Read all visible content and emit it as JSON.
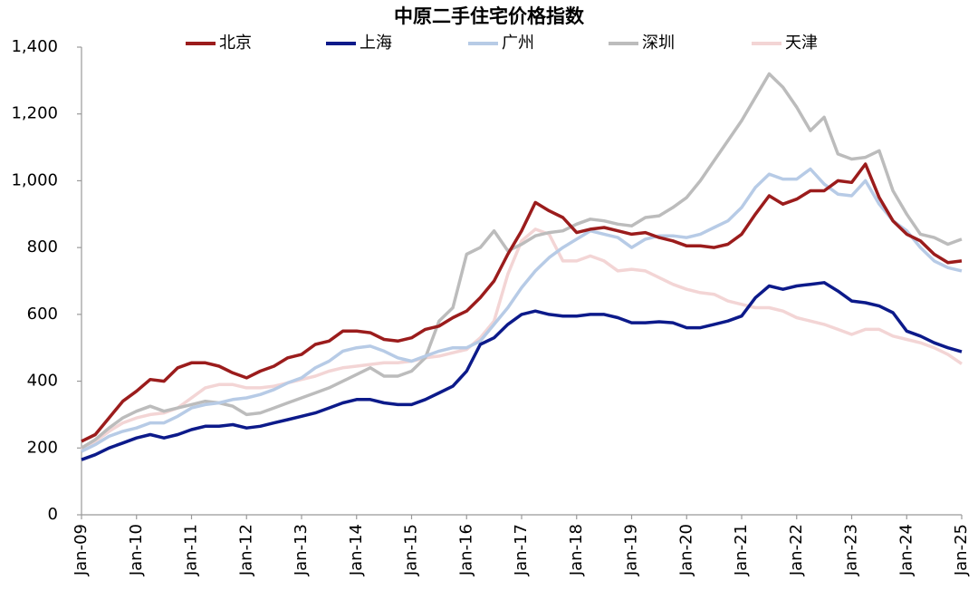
{
  "chart_data": {
    "type": "line",
    "title": "中原二手住宅价格指数",
    "categories": [
      "Jan-09",
      null,
      null,
      null,
      "Jan-10",
      null,
      null,
      null,
      "Jan-11",
      null,
      null,
      null,
      "Jan-12",
      null,
      null,
      null,
      "Jan-13",
      null,
      null,
      null,
      "Jan-14",
      null,
      null,
      null,
      "Jan-15",
      null,
      null,
      null,
      "Jan-16",
      null,
      null,
      null,
      "Jan-17",
      null,
      null,
      null,
      "Jan-18",
      null,
      null,
      null,
      "Jan-19",
      null,
      null,
      null,
      "Jan-20",
      null,
      null,
      null,
      "Jan-21",
      null,
      null,
      null,
      "Jan-22",
      null,
      null,
      null,
      "Jan-23",
      null,
      null,
      null,
      "Jan-24",
      null,
      null,
      null,
      "Jan-25"
    ],
    "ylim": [
      0,
      1400
    ],
    "yticks": [
      0,
      200,
      400,
      600,
      800,
      {
        "value": 1000,
        "label": "1,000"
      },
      {
        "value": 1200,
        "label": "1,200"
      },
      {
        "value": 1400,
        "label": "1,400"
      }
    ],
    "grid": false,
    "legend": "top",
    "series": [
      {
        "name": "北京",
        "color": "#9b1c1c",
        "values": [
          220,
          240,
          290,
          340,
          370,
          405,
          400,
          440,
          455,
          455,
          445,
          425,
          410,
          430,
          445,
          470,
          480,
          510,
          520,
          550,
          550,
          545,
          525,
          520,
          530,
          555,
          565,
          590,
          610,
          650,
          700,
          780,
          850,
          935,
          910,
          890,
          845,
          855,
          860,
          850,
          840,
          845,
          830,
          820,
          805,
          805,
          800,
          810,
          840,
          900,
          955,
          930,
          945,
          970,
          970,
          1000,
          995,
          1050,
          950,
          880,
          840,
          820,
          780,
          755,
          760
        ]
      },
      {
        "name": "上海",
        "color": "#0c1a8a",
        "values": [
          165,
          180,
          200,
          215,
          230,
          240,
          230,
          240,
          255,
          265,
          265,
          270,
          260,
          265,
          275,
          285,
          295,
          305,
          320,
          335,
          345,
          345,
          335,
          330,
          330,
          345,
          365,
          385,
          430,
          510,
          530,
          570,
          600,
          610,
          600,
          595,
          595,
          600,
          600,
          590,
          575,
          575,
          578,
          575,
          560,
          560,
          570,
          580,
          595,
          650,
          685,
          675,
          685,
          690,
          695,
          670,
          640,
          635,
          625,
          605,
          550,
          535,
          515,
          500,
          488
        ]
      },
      {
        "name": "广州",
        "color": "#b7cbe6",
        "values": [
          190,
          210,
          235,
          250,
          260,
          275,
          275,
          295,
          320,
          330,
          335,
          345,
          350,
          360,
          375,
          395,
          410,
          440,
          460,
          490,
          500,
          505,
          490,
          470,
          460,
          475,
          490,
          500,
          500,
          520,
          570,
          620,
          680,
          730,
          770,
          800,
          825,
          850,
          840,
          830,
          800,
          825,
          835,
          835,
          830,
          840,
          860,
          880,
          920,
          980,
          1020,
          1005,
          1005,
          1035,
          990,
          960,
          955,
          1000,
          930,
          880,
          850,
          800,
          760,
          740,
          730
        ]
      },
      {
        "name": "深圳",
        "color": "#bcbcbc",
        "values": [
          200,
          225,
          260,
          290,
          310,
          325,
          310,
          320,
          330,
          340,
          335,
          325,
          300,
          305,
          320,
          335,
          350,
          365,
          380,
          400,
          420,
          440,
          415,
          415,
          430,
          470,
          580,
          620,
          780,
          800,
          850,
          790,
          810,
          835,
          845,
          850,
          870,
          885,
          880,
          870,
          865,
          890,
          895,
          920,
          950,
          1000,
          1060,
          1120,
          1180,
          1250,
          1320,
          1280,
          1220,
          1150,
          1190,
          1080,
          1065,
          1070,
          1090,
          970,
          900,
          840,
          830,
          810,
          825
        ]
      },
      {
        "name": "天津",
        "color": "#f3d5d5",
        "values": [
          195,
          220,
          250,
          275,
          290,
          300,
          305,
          320,
          350,
          380,
          390,
          390,
          380,
          380,
          385,
          395,
          405,
          415,
          430,
          440,
          445,
          450,
          455,
          455,
          460,
          470,
          475,
          485,
          495,
          530,
          580,
          720,
          820,
          855,
          840,
          760,
          760,
          775,
          760,
          730,
          735,
          730,
          710,
          690,
          675,
          665,
          660,
          640,
          630,
          620,
          620,
          610,
          590,
          580,
          570,
          555,
          540,
          555,
          555,
          535,
          525,
          515,
          500,
          480,
          452
        ]
      }
    ]
  }
}
